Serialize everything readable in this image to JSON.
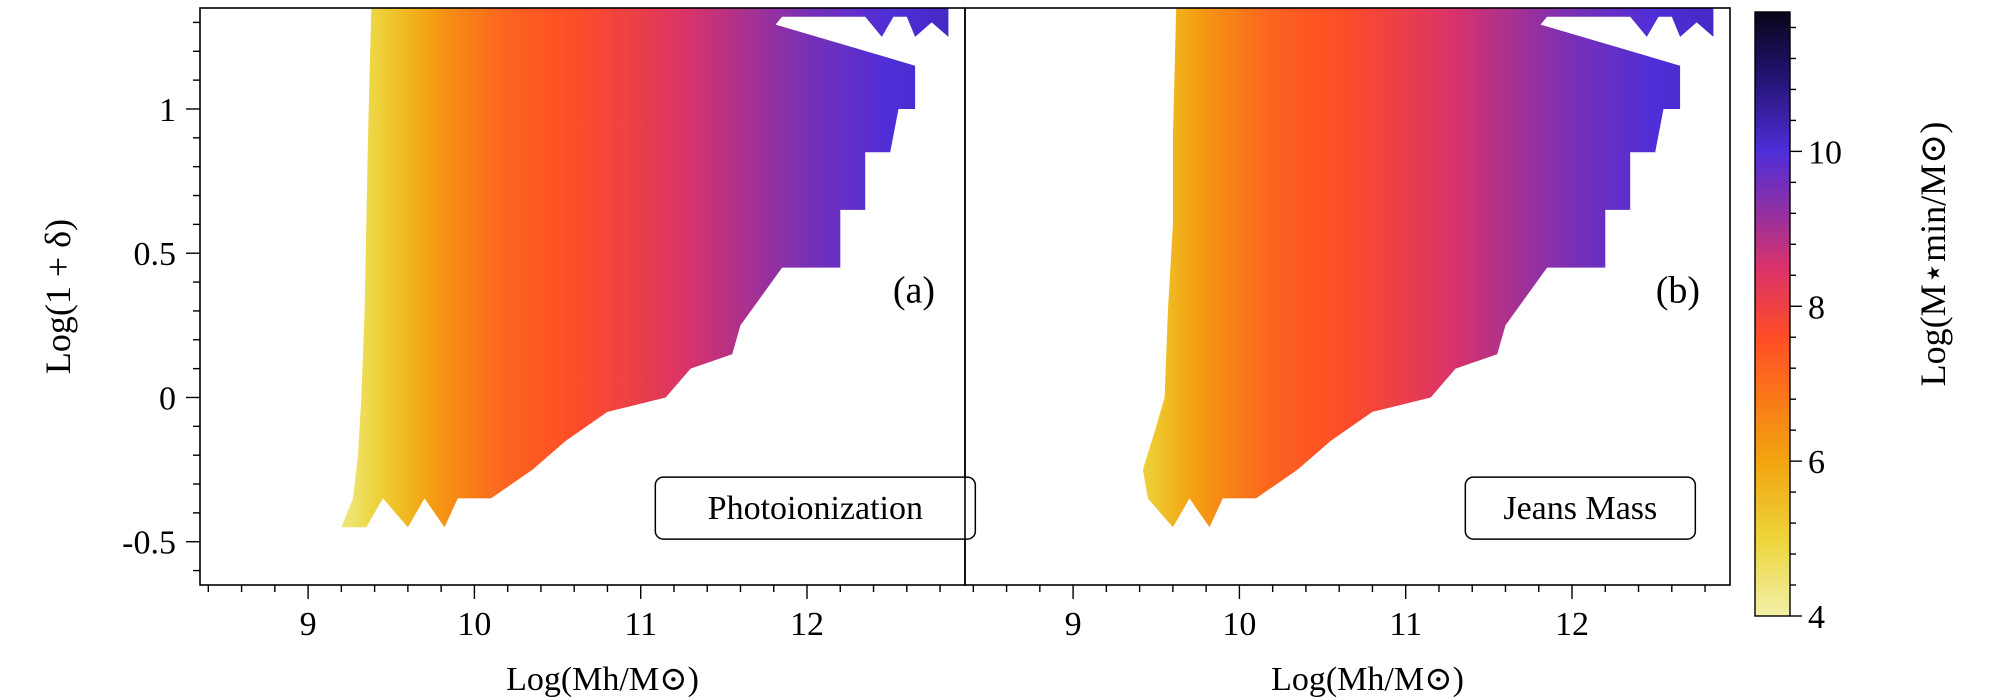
{
  "chart_data": {
    "type": "heatmap",
    "shared_ylabel": "Log(1 + δ)",
    "yticks": [
      -0.5,
      0,
      0.5,
      1
    ],
    "ytick_labels": [
      "-0.5",
      "0",
      "0.5",
      "1"
    ],
    "ylim": [
      -0.65,
      1.35
    ],
    "xlim": [
      8.35,
      12.95
    ],
    "xticks": [
      9,
      10,
      11,
      12
    ],
    "xtick_labels": [
      "9",
      "10",
      "11",
      "12"
    ],
    "panels": [
      {
        "id": "a",
        "tag": "(a)",
        "label": "Photoionization",
        "xlabel": "Log(Mh/M⊙)",
        "boundary_left": [
          [
            9.2,
            -0.45
          ],
          [
            9.27,
            -0.35
          ],
          [
            9.3,
            -0.2
          ],
          [
            9.32,
            0
          ],
          [
            9.34,
            0.3
          ],
          [
            9.35,
            0.6
          ],
          [
            9.36,
            0.9
          ],
          [
            9.38,
            1.35
          ]
        ],
        "boundary_right": [
          [
            12.85,
            1.35
          ],
          [
            12.85,
            1.25
          ],
          [
            12.75,
            1.3
          ],
          [
            12.65,
            1.25
          ],
          [
            12.6,
            1.32
          ],
          [
            12.52,
            1.32
          ],
          [
            12.45,
            1.25
          ],
          [
            12.35,
            1.32
          ],
          [
            11.85,
            1.32
          ],
          [
            11.75,
            1.25
          ],
          [
            11.65,
            1.32
          ],
          [
            12.65,
            1.15
          ],
          [
            12.65,
            1.0
          ],
          [
            12.55,
            1.0
          ],
          [
            12.5,
            0.85
          ],
          [
            12.35,
            0.85
          ],
          [
            12.35,
            0.65
          ],
          [
            12.2,
            0.65
          ],
          [
            12.2,
            0.45
          ],
          [
            11.85,
            0.45
          ],
          [
            11.6,
            0.25
          ],
          [
            11.55,
            0.15
          ],
          [
            11.3,
            0.1
          ],
          [
            11.15,
            0.0
          ],
          [
            10.8,
            -0.05
          ],
          [
            10.55,
            -0.15
          ],
          [
            10.35,
            -0.25
          ],
          [
            10.1,
            -0.35
          ],
          [
            9.9,
            -0.35
          ],
          [
            9.82,
            -0.45
          ],
          [
            9.7,
            -0.35
          ],
          [
            9.6,
            -0.45
          ],
          [
            9.45,
            -0.35
          ],
          [
            9.35,
            -0.45
          ]
        ]
      },
      {
        "id": "b",
        "tag": "(b)",
        "label": "Jeans Mass",
        "xlabel": "Log(Mh/M⊙)",
        "boundary_left": [
          [
            9.45,
            -0.35
          ],
          [
            9.42,
            -0.25
          ],
          [
            9.5,
            -0.1
          ],
          [
            9.55,
            0
          ],
          [
            9.57,
            0.3
          ],
          [
            9.6,
            0.6
          ],
          [
            9.6,
            0.9
          ],
          [
            9.62,
            1.35
          ]
        ],
        "boundary_right": [
          [
            12.85,
            1.35
          ],
          [
            12.85,
            1.25
          ],
          [
            12.75,
            1.3
          ],
          [
            12.65,
            1.25
          ],
          [
            12.6,
            1.32
          ],
          [
            12.52,
            1.32
          ],
          [
            12.45,
            1.25
          ],
          [
            12.35,
            1.32
          ],
          [
            11.85,
            1.32
          ],
          [
            11.75,
            1.25
          ],
          [
            11.65,
            1.32
          ],
          [
            12.65,
            1.15
          ],
          [
            12.65,
            1.0
          ],
          [
            12.55,
            1.0
          ],
          [
            12.5,
            0.85
          ],
          [
            12.35,
            0.85
          ],
          [
            12.35,
            0.65
          ],
          [
            12.2,
            0.65
          ],
          [
            12.2,
            0.45
          ],
          [
            11.85,
            0.45
          ],
          [
            11.6,
            0.25
          ],
          [
            11.55,
            0.15
          ],
          [
            11.3,
            0.1
          ],
          [
            11.15,
            0.0
          ],
          [
            10.8,
            -0.05
          ],
          [
            10.55,
            -0.15
          ],
          [
            10.35,
            -0.25
          ],
          [
            10.1,
            -0.35
          ],
          [
            9.9,
            -0.35
          ],
          [
            9.82,
            -0.45
          ],
          [
            9.7,
            -0.35
          ],
          [
            9.6,
            -0.45
          ]
        ]
      }
    ],
    "colorbar": {
      "label": "Log(M⋆min/M⊙)",
      "range": [
        4,
        11.8
      ],
      "ticks": [
        4,
        6,
        8,
        10
      ],
      "tick_labels": [
        "4",
        "6",
        "8",
        "10"
      ],
      "colormap_stops": [
        {
          "value": 4.0,
          "color": "#f2f0a8"
        },
        {
          "value": 5.0,
          "color": "#edd43a"
        },
        {
          "value": 6.0,
          "color": "#f2a410"
        },
        {
          "value": 7.0,
          "color": "#fb6e1c"
        },
        {
          "value": 7.6,
          "color": "#ff4d26"
        },
        {
          "value": 8.5,
          "color": "#d9326a"
        },
        {
          "value": 9.3,
          "color": "#8a30a8"
        },
        {
          "value": 10.0,
          "color": "#4e2ed8"
        },
        {
          "value": 11.0,
          "color": "#23126e"
        },
        {
          "value": 11.8,
          "color": "#07061a"
        }
      ]
    },
    "value_model": {
      "description": "color value as function of halo mass (approx.)",
      "mh": [
        9.2,
        9.5,
        9.8,
        10.2,
        10.6,
        11.0,
        11.5,
        12.0,
        12.5,
        12.9
      ],
      "value": [
        4.3,
        5.3,
        6.3,
        7.2,
        7.6,
        8.1,
        8.8,
        9.5,
        10.0,
        10.2
      ]
    }
  }
}
